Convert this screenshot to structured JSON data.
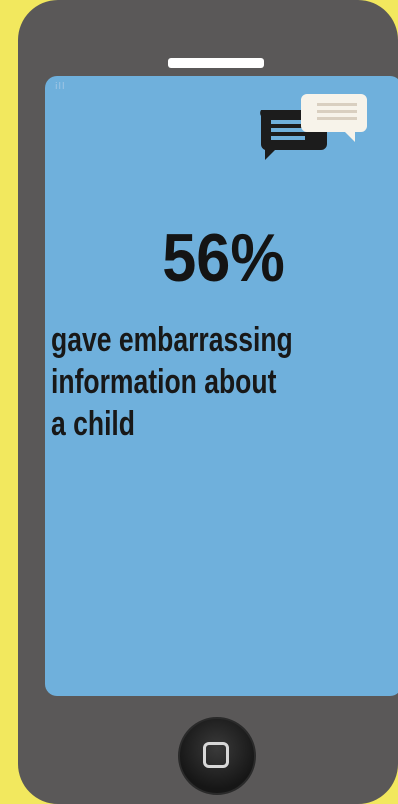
{
  "screen": {
    "signal_text": "ill",
    "stat_value": "56%",
    "stat_lines": [
      "gave embarrassing",
      "information about",
      "a child"
    ]
  },
  "icons": {
    "chat": "chat-bubbles-icon",
    "home": "home-button-icon"
  },
  "colors": {
    "background": "#f2e85e",
    "phone_body": "#5a5858",
    "screen": "#6fb0dc",
    "text": "#141414"
  }
}
